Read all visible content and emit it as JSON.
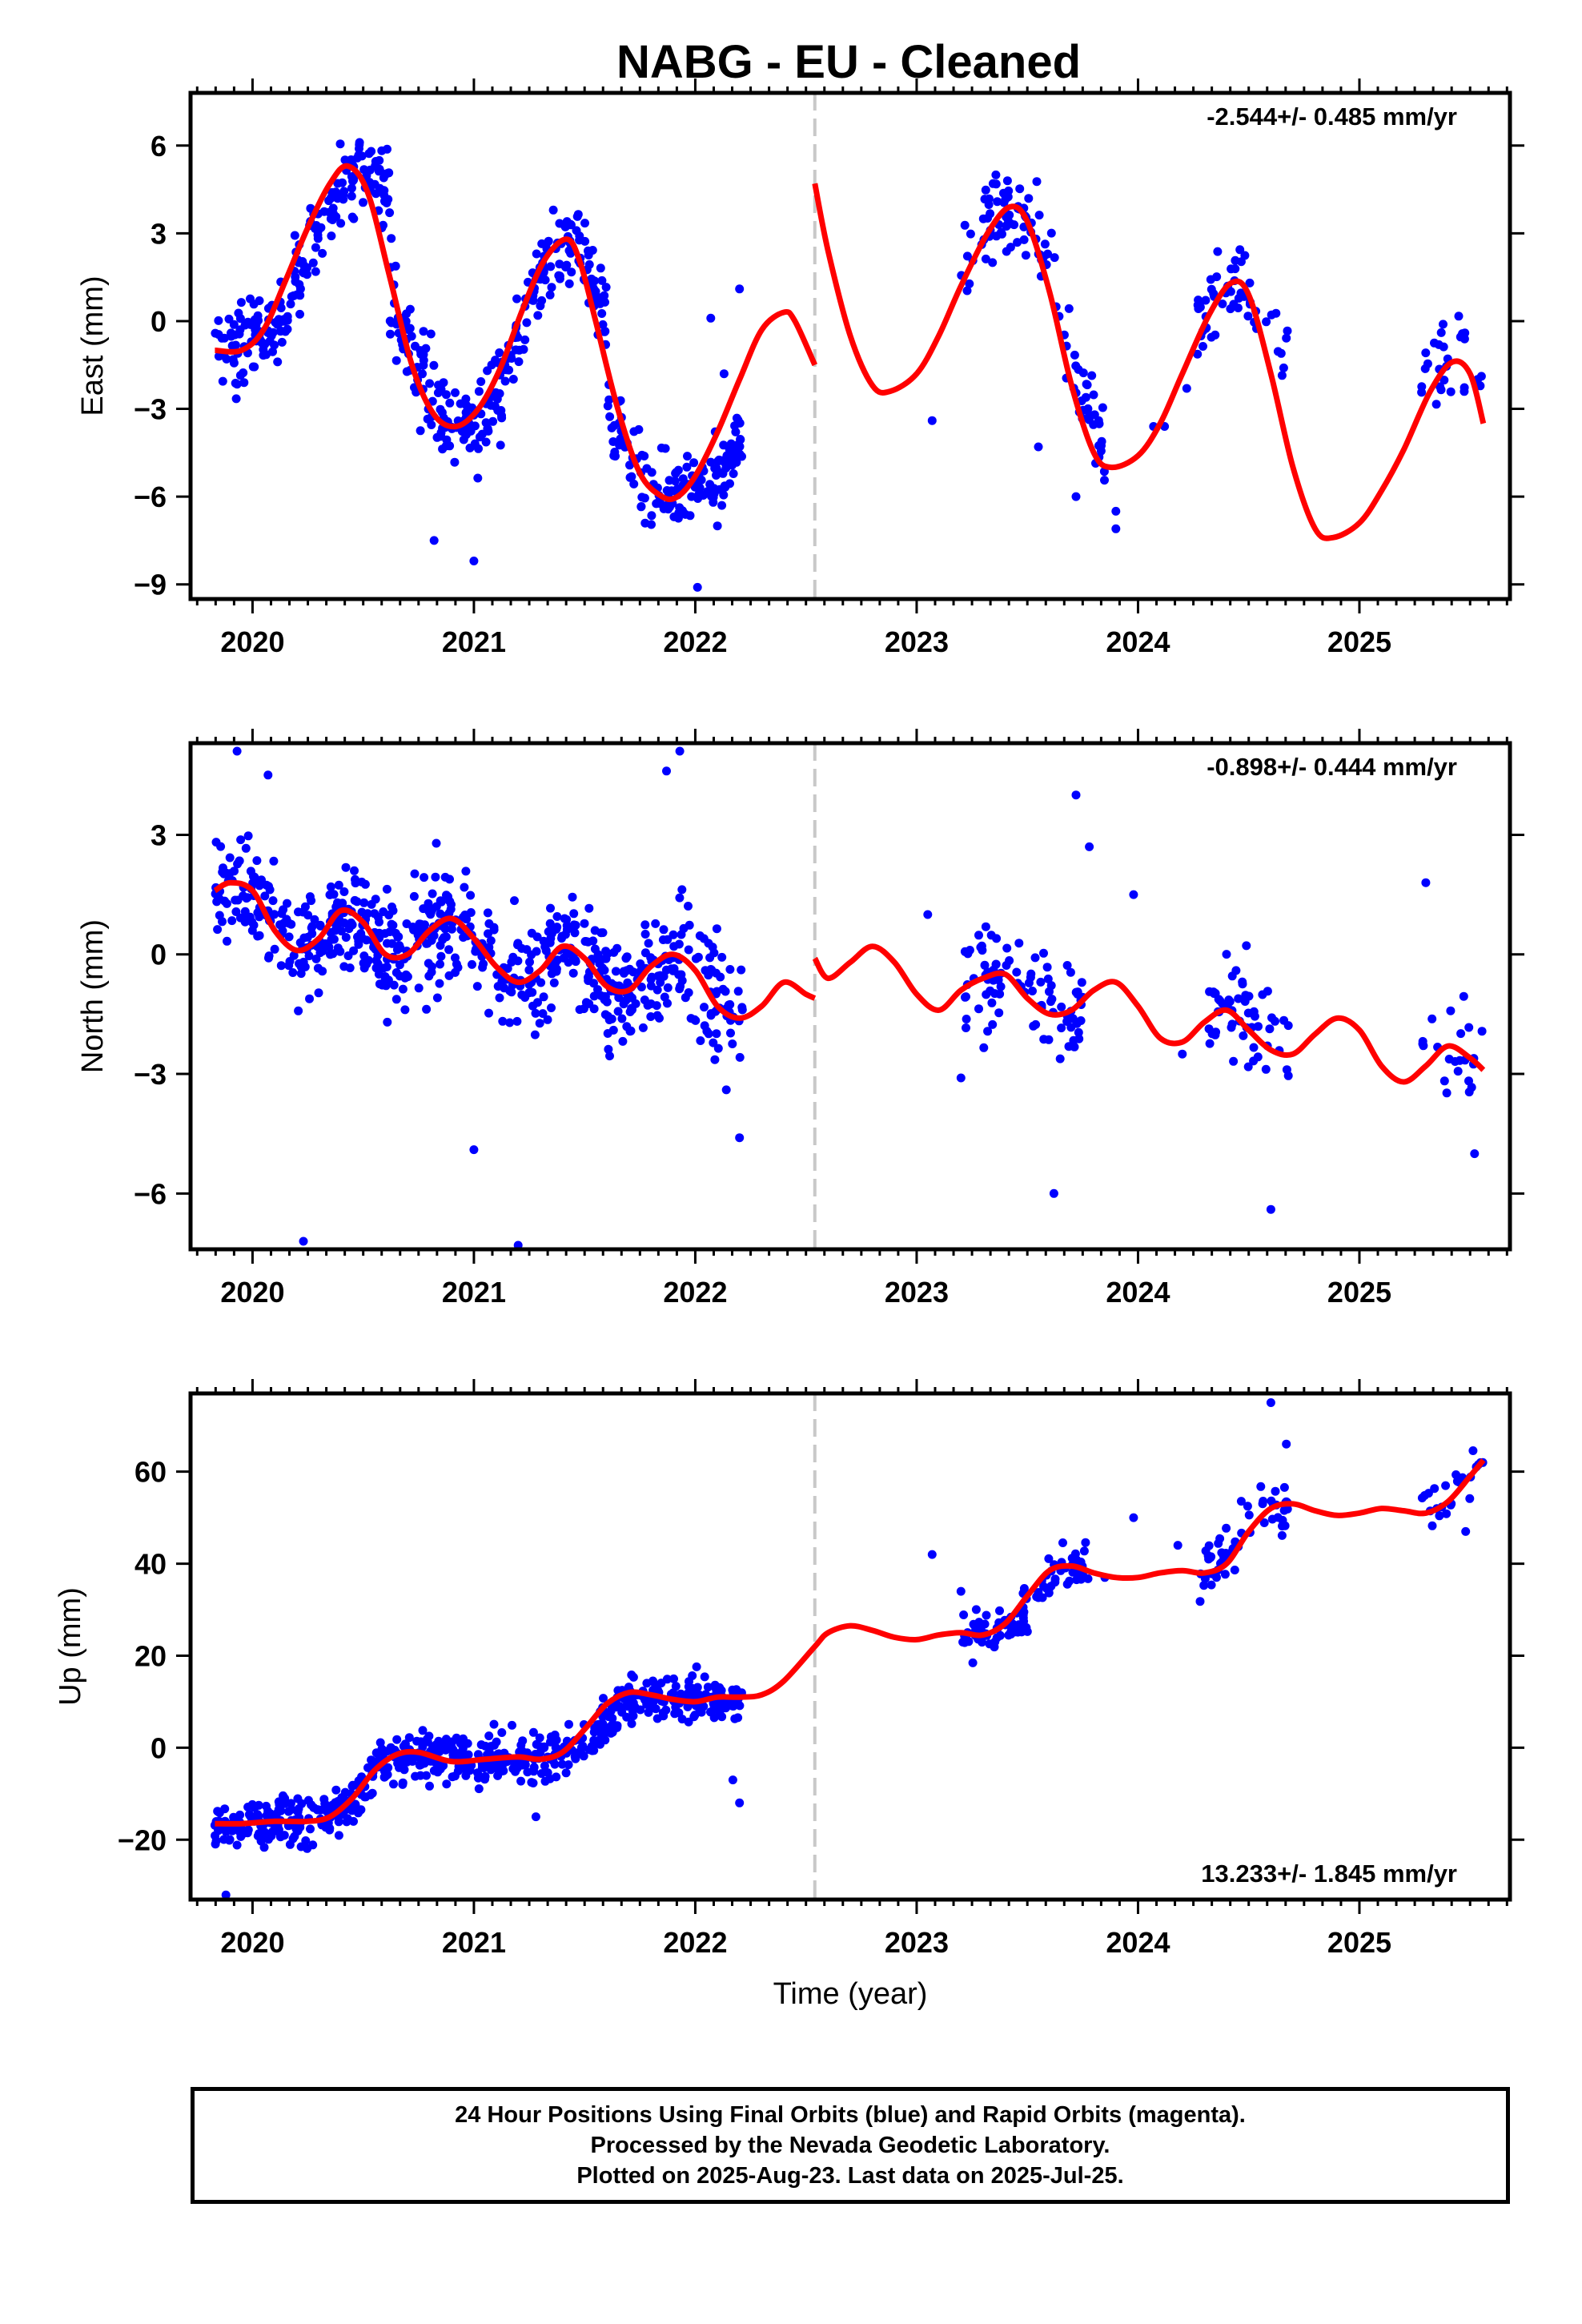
{
  "title": "NABG  - EU - Cleaned",
  "footer": {
    "line1": "24 Hour Positions Using Final Orbits (blue) and Rapid Orbits (magenta).",
    "line2": "Processed by the Nevada Geodetic Laboratory.",
    "line3": "Plotted on 2025-Aug-23. Last data on 2025-Jul-25."
  },
  "colors": {
    "data_points": "#0000ff",
    "model_curve": "#ff0000",
    "equipment_change_line": "#c8c8c8",
    "axes": "#000000"
  },
  "chart_data": [
    {
      "type": "scatter",
      "panel": "east",
      "ylabel": "East (mm)",
      "rate_label": "-2.544+/- 0.485 mm/yr",
      "xlim": [
        2019.72,
        2025.68
      ],
      "ylim": [
        -9.5,
        7.8
      ],
      "xticks": [
        2020,
        2021,
        2022,
        2023,
        2024,
        2025
      ],
      "yticks": [
        6,
        3,
        0,
        -3,
        -6,
        -9
      ],
      "ytick_labels": [
        "6",
        "3",
        "0",
        "−3",
        "−6",
        "−9"
      ],
      "equipment_change_epoch": 2022.54,
      "model_curve": {
        "x": [
          2019.83,
          2019.95,
          2020.05,
          2020.15,
          2020.25,
          2020.35,
          2020.43,
          2020.52,
          2020.62,
          2020.72,
          2020.82,
          2020.92,
          2021.02,
          2021.12,
          2021.22,
          2021.32,
          2021.42,
          2021.48,
          2021.55,
          2021.65,
          2021.75,
          2021.85,
          2021.92,
          2022.0,
          2022.1,
          2022.2,
          2022.3,
          2022.4,
          2022.45,
          2022.54,
          2022.54,
          2022.6,
          2022.7,
          2022.8,
          2022.88,
          2023.0,
          2023.1,
          2023.2,
          2023.32,
          2023.42,
          2023.5,
          2023.6,
          2023.7,
          2023.8,
          2023.88,
          2024.0,
          2024.1,
          2024.2,
          2024.32,
          2024.42,
          2024.5,
          2024.6,
          2024.7,
          2024.8,
          2024.88,
          2025.0,
          2025.1,
          2025.2,
          2025.32,
          2025.42,
          2025.5,
          2025.56
        ],
        "y": [
          -1.0,
          -1.0,
          -0.3,
          1.4,
          3.2,
          4.7,
          5.3,
          4.4,
          1.5,
          -1.5,
          -3.2,
          -3.6,
          -3.0,
          -1.6,
          0.4,
          2.1,
          2.8,
          2.0,
          0.0,
          -3.0,
          -5.2,
          -6.0,
          -6.0,
          -5.3,
          -3.8,
          -2.0,
          -0.3,
          0.3,
          0.0,
          -1.5,
          4.7,
          2.4,
          -0.5,
          -2.2,
          -2.4,
          -1.8,
          -0.5,
          1.2,
          3.0,
          3.9,
          3.4,
          1.0,
          -2.2,
          -4.5,
          -5.0,
          -4.6,
          -3.5,
          -1.8,
          0.2,
          1.3,
          0.9,
          -1.8,
          -5.0,
          -7.1,
          -7.4,
          -6.9,
          -5.8,
          -4.4,
          -2.4,
          -1.4,
          -1.8,
          -3.5
        ]
      },
      "series_summary": [
        {
          "x_start": 2019.83,
          "x_end": 2020.2,
          "center": [
            -1.0,
            -1.0,
            -0.3,
            1.4
          ],
          "spread": 1.3,
          "count": 95
        },
        {
          "x_start": 2020.2,
          "x_end": 2020.62,
          "center": [
            1.4,
            3.2,
            4.7,
            5.3,
            4.4
          ],
          "spread": 1.2,
          "count": 110
        },
        {
          "x_start": 2020.62,
          "x_end": 2021.15,
          "center": [
            1.5,
            -1.5,
            -3.2,
            -3.6,
            -3.0,
            -1.6
          ],
          "spread": 1.6,
          "count": 140
        },
        {
          "x_start": 2021.15,
          "x_end": 2021.6,
          "center": [
            -1.6,
            0.4,
            2.1,
            2.8,
            2.0,
            0.0
          ],
          "spread": 1.2,
          "count": 120
        },
        {
          "x_start": 2021.6,
          "x_end": 2022.22,
          "center": [
            -3.0,
            -5.2,
            -6.0,
            -6.0,
            -5.3,
            -3.8
          ],
          "spread": 1.2,
          "count": 150
        },
        {
          "x_start": 2023.2,
          "x_end": 2023.85,
          "center": [
            1.2,
            3.0,
            3.9,
            3.4,
            1.0,
            -2.2,
            -4.5
          ],
          "spread": 1.3,
          "count": 110
        },
        {
          "x_start": 2024.25,
          "x_end": 2024.68,
          "center": [
            -0.5,
            0.9,
            1.3,
            0.9,
            -1.5
          ],
          "spread": 1.2,
          "count": 55
        },
        {
          "x_start": 2025.28,
          "x_end": 2025.56,
          "center": [
            -1.8,
            -1.4,
            -1.3,
            -2.2
          ],
          "spread": 1.3,
          "count": 28
        }
      ],
      "scattered_points": [
        [
          2023.07,
          -3.4
        ],
        [
          2023.55,
          -4.3
        ],
        [
          2023.72,
          -6.0
        ],
        [
          2023.9,
          -6.5
        ],
        [
          2023.9,
          -7.1
        ],
        [
          2024.07,
          -3.6
        ],
        [
          2024.12,
          -3.6
        ],
        [
          2024.22,
          -2.3
        ],
        [
          2022.01,
          -9.1
        ],
        [
          2022.1,
          -7.0
        ],
        [
          2022.12,
          -6.3
        ],
        [
          2021.0,
          -8.2
        ],
        [
          2020.82,
          -7.5
        ],
        [
          2022.07,
          0.1
        ],
        [
          2022.2,
          1.1
        ],
        [
          2022.13,
          -1.8
        ]
      ]
    },
    {
      "type": "scatter",
      "panel": "north",
      "ylabel": "North (mm)",
      "rate_label": "-0.898+/- 0.444 mm/yr",
      "xlim": [
        2019.72,
        2025.68
      ],
      "ylim": [
        -7.4,
        5.3
      ],
      "xticks": [
        2020,
        2021,
        2022,
        2023,
        2024,
        2025
      ],
      "yticks": [
        3,
        0,
        -3,
        -6
      ],
      "ytick_labels": [
        "3",
        "0",
        "−3",
        "−6"
      ],
      "equipment_change_epoch": 2022.54,
      "model_curve": {
        "x": [
          2019.83,
          2019.9,
          2020.0,
          2020.1,
          2020.2,
          2020.3,
          2020.4,
          2020.5,
          2020.6,
          2020.7,
          2020.8,
          2020.9,
          2021.0,
          2021.1,
          2021.2,
          2021.3,
          2021.4,
          2021.5,
          2021.6,
          2021.7,
          2021.8,
          2021.9,
          2022.0,
          2022.1,
          2022.2,
          2022.3,
          2022.4,
          2022.5,
          2022.54,
          2022.54,
          2022.6,
          2022.7,
          2022.8,
          2022.9,
          2023.0,
          2023.1,
          2023.2,
          2023.3,
          2023.4,
          2023.5,
          2023.6,
          2023.7,
          2023.8,
          2023.9,
          2024.0,
          2024.1,
          2024.2,
          2024.3,
          2024.4,
          2024.5,
          2024.6,
          2024.7,
          2024.8,
          2024.9,
          2025.0,
          2025.1,
          2025.2,
          2025.3,
          2025.4,
          2025.5,
          2025.56
        ],
        "y": [
          1.6,
          1.8,
          1.6,
          0.6,
          0.1,
          0.4,
          1.1,
          0.8,
          0.0,
          0.0,
          0.6,
          0.9,
          0.4,
          -0.3,
          -0.7,
          -0.4,
          0.2,
          -0.1,
          -0.8,
          -0.9,
          -0.3,
          0.0,
          -0.4,
          -1.3,
          -1.6,
          -1.3,
          -0.7,
          -1.0,
          -1.1,
          -0.1,
          -0.6,
          -0.2,
          0.2,
          -0.2,
          -1.0,
          -1.4,
          -0.9,
          -0.6,
          -0.5,
          -1.1,
          -1.5,
          -1.4,
          -0.9,
          -0.7,
          -1.3,
          -2.1,
          -2.2,
          -1.7,
          -1.4,
          -1.9,
          -2.4,
          -2.5,
          -2.0,
          -1.6,
          -1.9,
          -2.8,
          -3.2,
          -2.8,
          -2.3,
          -2.6,
          -2.9
        ]
      },
      "series_summary": [
        {
          "x_start": 2019.83,
          "x_end": 2020.6,
          "center": [
            1.6,
            1.8,
            1.6,
            0.6,
            0.1,
            0.4,
            1.1,
            0.8,
            0.0
          ],
          "spread": 1.2,
          "count": 230
        },
        {
          "x_start": 2020.6,
          "x_end": 2021.4,
          "center": [
            0.0,
            0.0,
            0.6,
            0.9,
            0.4,
            -0.3,
            -0.7,
            -0.4,
            0.2
          ],
          "spread": 1.3,
          "count": 220
        },
        {
          "x_start": 2021.4,
          "x_end": 2022.22,
          "center": [
            0.2,
            -0.1,
            -0.8,
            -0.9,
            -0.3,
            0.0,
            -0.4,
            -1.3,
            -1.6
          ],
          "spread": 1.3,
          "count": 230
        },
        {
          "x_start": 2023.2,
          "x_end": 2023.75,
          "center": [
            -0.9,
            -0.6,
            -0.5,
            -1.1,
            -1.5,
            -1.4
          ],
          "spread": 1.2,
          "count": 90
        },
        {
          "x_start": 2024.3,
          "x_end": 2024.68,
          "center": [
            -1.7,
            -1.4,
            -1.9,
            -2.4
          ],
          "spread": 1.2,
          "count": 55
        },
        {
          "x_start": 2025.28,
          "x_end": 2025.56,
          "center": [
            -2.8,
            -2.3,
            -2.6,
            -2.9
          ],
          "spread": 1.0,
          "count": 22
        }
      ],
      "scattered_points": [
        [
          2020.23,
          -7.2
        ],
        [
          2021.2,
          -7.3
        ],
        [
          2021.0,
          -4.9
        ],
        [
          2022.2,
          -4.6
        ],
        [
          2022.14,
          -3.4
        ],
        [
          2021.87,
          4.6
        ],
        [
          2021.93,
          5.1
        ],
        [
          2019.93,
          5.1
        ],
        [
          2020.07,
          4.5
        ],
        [
          2023.05,
          1.0
        ],
        [
          2023.72,
          4.0
        ],
        [
          2023.78,
          2.7
        ],
        [
          2023.62,
          -6.0
        ],
        [
          2024.6,
          -6.4
        ],
        [
          2024.2,
          -2.5
        ],
        [
          2025.3,
          1.8
        ],
        [
          2025.52,
          -5.0
        ],
        [
          2023.2,
          -3.1
        ],
        [
          2023.98,
          1.5
        ]
      ]
    },
    {
      "type": "scatter",
      "panel": "up",
      "ylabel": "Up (mm)",
      "rate_label": "13.233+/- 1.845 mm/yr",
      "xlabel": "Time (year)",
      "xlim": [
        2019.72,
        2025.68
      ],
      "ylim": [
        -33,
        77
      ],
      "xticks": [
        2020,
        2021,
        2022,
        2023,
        2024,
        2025
      ],
      "yticks": [
        60,
        40,
        20,
        0,
        -20
      ],
      "ytick_labels": [
        "60",
        "40",
        "20",
        "0",
        "−20"
      ],
      "equipment_change_epoch": 2022.54,
      "model_curve": {
        "x": [
          2019.83,
          2019.95,
          2020.1,
          2020.25,
          2020.35,
          2020.45,
          2020.55,
          2020.65,
          2020.75,
          2020.9,
          2021.05,
          2021.2,
          2021.3,
          2021.4,
          2021.5,
          2021.6,
          2021.7,
          2021.8,
          2021.9,
          2022.0,
          2022.1,
          2022.2,
          2022.3,
          2022.4,
          2022.54,
          2022.6,
          2022.7,
          2022.8,
          2022.9,
          2023.0,
          2023.1,
          2023.2,
          2023.3,
          2023.4,
          2023.5,
          2023.6,
          2023.7,
          2023.8,
          2023.9,
          2024.0,
          2024.1,
          2024.2,
          2024.3,
          2024.4,
          2024.5,
          2024.6,
          2024.7,
          2024.8,
          2024.9,
          2025.0,
          2025.1,
          2025.2,
          2025.3,
          2025.4,
          2025.5,
          2025.56
        ],
        "y": [
          -16.5,
          -16.5,
          -16.0,
          -16.0,
          -15.0,
          -11.0,
          -5.0,
          -1.5,
          -1.0,
          -3.0,
          -2.5,
          -2.0,
          -2.5,
          -1.0,
          4.0,
          9.5,
          12.0,
          11.5,
          10.5,
          10.0,
          11.0,
          11.0,
          11.5,
          14.5,
          22.0,
          25.0,
          26.5,
          25.5,
          24.0,
          23.5,
          24.5,
          25.0,
          24.5,
          27.0,
          33.0,
          38.5,
          39.5,
          38.0,
          37.0,
          37.0,
          38.0,
          38.5,
          38.0,
          40.0,
          47.0,
          52.0,
          53.0,
          51.5,
          50.5,
          51.0,
          52.0,
          51.5,
          51.0,
          53.5,
          59.0,
          62.5
        ]
      },
      "series_summary": [
        {
          "x_start": 2019.83,
          "x_end": 2020.45,
          "center": [
            -16.5,
            -16.5,
            -16.0,
            -16.0,
            -15.0,
            -11.0
          ],
          "spread": 4.5,
          "count": 190
        },
        {
          "x_start": 2020.45,
          "x_end": 2021.45,
          "center": [
            -11.0,
            -5.0,
            -1.5,
            -1.0,
            -3.0,
            -2.5,
            -2.0,
            -2.5,
            -1.0
          ],
          "spread": 5.0,
          "count": 270
        },
        {
          "x_start": 2021.45,
          "x_end": 2022.22,
          "center": [
            -1.0,
            4.0,
            9.5,
            12.0,
            11.5,
            10.5,
            10.0,
            11.0
          ],
          "spread": 4.5,
          "count": 200
        },
        {
          "x_start": 2023.2,
          "x_end": 2023.78,
          "center": [
            25.0,
            24.5,
            27.0,
            33.0,
            38.5,
            39.5
          ],
          "spread": 5.0,
          "count": 110
        },
        {
          "x_start": 2024.28,
          "x_end": 2024.68,
          "center": [
            38.0,
            40.0,
            47.0,
            52.0,
            53.0
          ],
          "spread": 5.5,
          "count": 60
        },
        {
          "x_start": 2025.28,
          "x_end": 2025.56,
          "center": [
            51.0,
            53.5,
            59.0,
            62.5
          ],
          "spread": 5.0,
          "count": 24
        }
      ],
      "scattered_points": [
        [
          2019.88,
          -32.0
        ],
        [
          2023.07,
          42.0
        ],
        [
          2023.98,
          50.0
        ],
        [
          2024.6,
          75.0
        ],
        [
          2024.67,
          66.0
        ],
        [
          2022.2,
          -12.0
        ],
        [
          2022.17,
          -7.0
        ],
        [
          2021.28,
          -15.0
        ],
        [
          2023.2,
          34.0
        ],
        [
          2023.85,
          37.0
        ],
        [
          2024.18,
          44.0
        ],
        [
          2025.48,
          47.0
        ]
      ]
    }
  ]
}
